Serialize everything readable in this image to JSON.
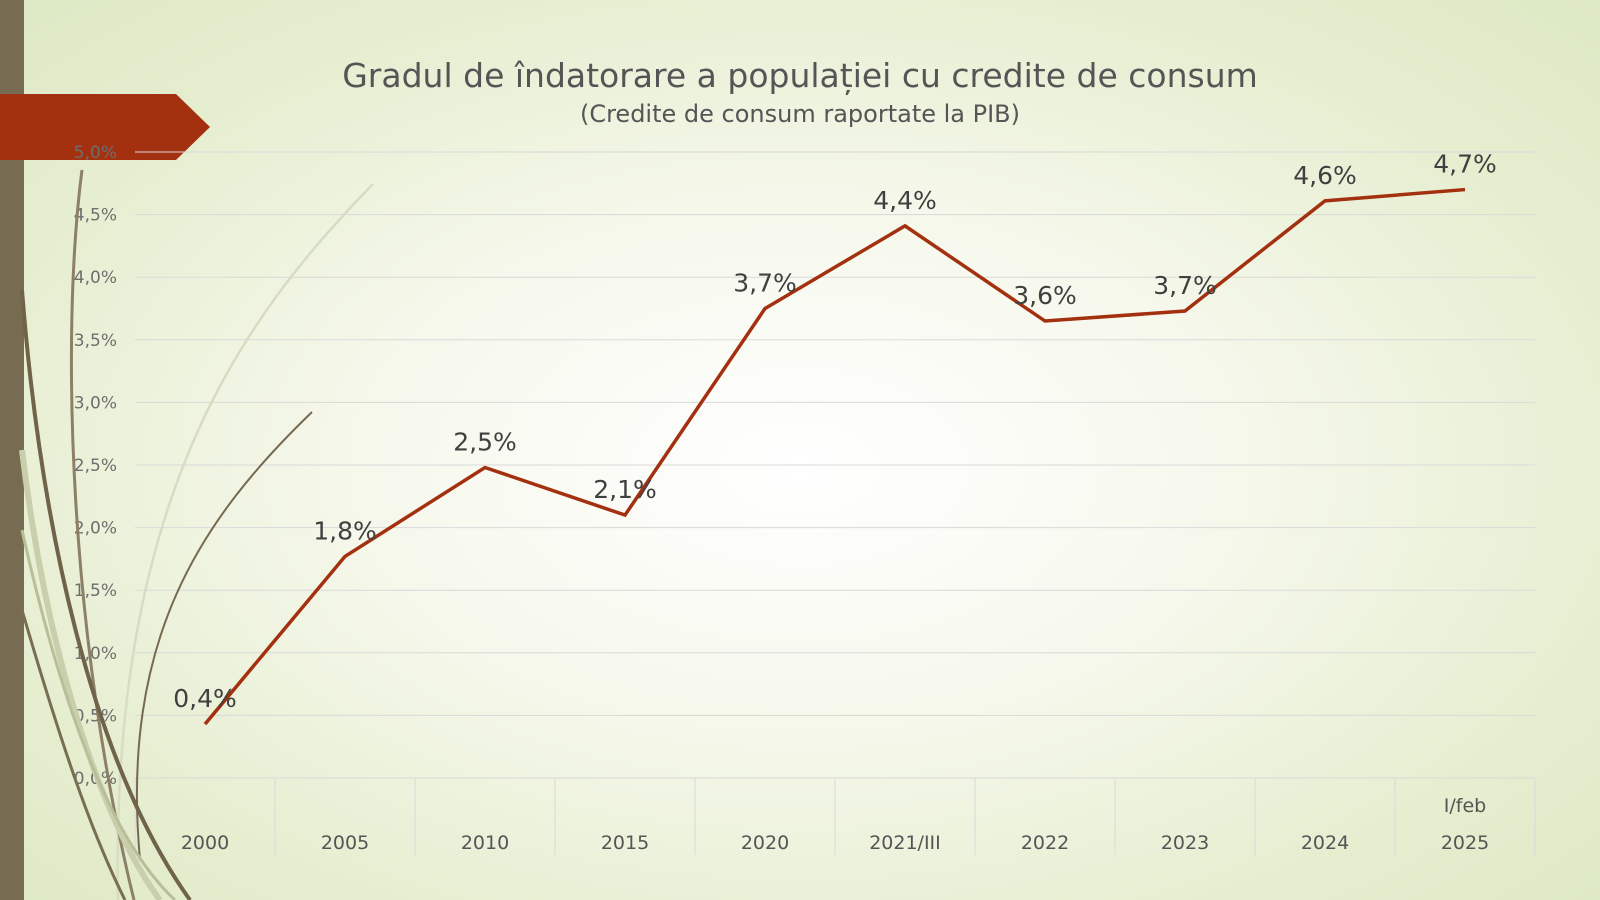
{
  "title": "Gradul de îndatorare a populației cu credite de consum",
  "subtitle": "(Credite de consum raportate la PIB)",
  "colors": {
    "line": "#a3300f",
    "accent_tag": "#a3300f",
    "left_bar": "#776c51",
    "grid": "#d9d9d9"
  },
  "chart_data": {
    "type": "line",
    "title": "Gradul de îndatorare a populației cu credite de consum",
    "subtitle": "(Credite de consum raportate la PIB)",
    "categories": [
      [
        "2000"
      ],
      [
        "2005"
      ],
      [
        "2010"
      ],
      [
        "2015"
      ],
      [
        "2020"
      ],
      [
        "2021/III"
      ],
      [
        "2022"
      ],
      [
        "2023"
      ],
      [
        "2024"
      ],
      [
        "I/feb",
        "2025"
      ]
    ],
    "values": [
      0.43,
      1.77,
      2.48,
      2.1,
      3.75,
      4.41,
      3.65,
      3.73,
      4.61,
      4.7
    ],
    "data_labels": [
      "0,4%",
      "1,8%",
      "2,5%",
      "2,1%",
      "3,7%",
      "4,4%",
      "3,6%",
      "3,7%",
      "4,6%",
      "4,7%"
    ],
    "y_ticks": [
      {
        "value": 0,
        "label": "0,0%"
      },
      {
        "value": 0.5,
        "label": "0,5%"
      },
      {
        "value": 1,
        "label": "1,0%"
      },
      {
        "value": 1.5,
        "label": "1,5%"
      },
      {
        "value": 2,
        "label": "2,0%"
      },
      {
        "value": 2.5,
        "label": "2,5%"
      },
      {
        "value": 3,
        "label": "3,0%"
      },
      {
        "value": 3.5,
        "label": "3,5%"
      },
      {
        "value": 4,
        "label": "4,0%"
      },
      {
        "value": 4.5,
        "label": "4,5%"
      },
      {
        "value": 5,
        "label": "5,0%"
      }
    ],
    "ylim": [
      0,
      5
    ],
    "grid": true,
    "legend": "none"
  }
}
